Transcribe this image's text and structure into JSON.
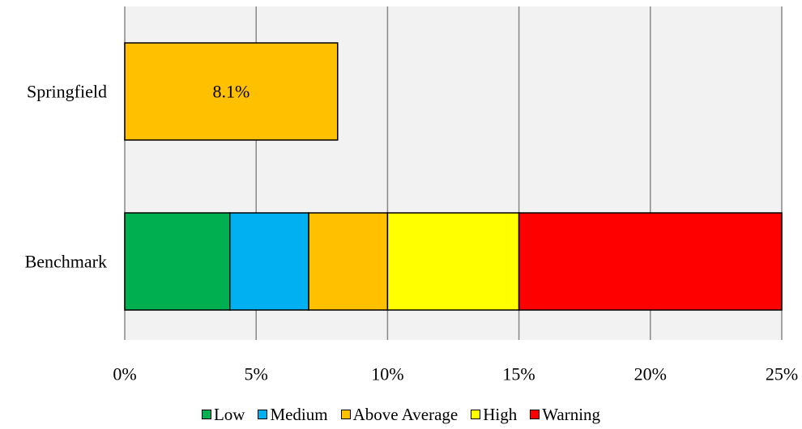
{
  "chart_data": {
    "type": "bar",
    "orientation": "horizontal",
    "stacked": true,
    "categories": [
      "Springfield",
      "Benchmark"
    ],
    "series": [
      {
        "name": "Low",
        "color": "#00b050",
        "values": [
          0,
          4
        ]
      },
      {
        "name": "Medium",
        "color": "#00b0f0",
        "values": [
          0,
          3
        ]
      },
      {
        "name": "Above Average",
        "color": "#ffc000",
        "values": [
          8.1,
          3
        ]
      },
      {
        "name": "High",
        "color": "#ffff00",
        "values": [
          0,
          5
        ]
      },
      {
        "name": "Warning",
        "color": "#ff0000",
        "values": [
          0,
          10
        ]
      }
    ],
    "data_labels": [
      {
        "category": "Springfield",
        "series": "Above Average",
        "text": "8.1%"
      }
    ],
    "xlim": [
      0,
      25
    ],
    "xticks": [
      0,
      5,
      10,
      15,
      20,
      25
    ],
    "xtick_labels": [
      "0%",
      "5%",
      "10%",
      "15%",
      "20%",
      "25%"
    ],
    "grid": "vertical",
    "plot_background": "#f2f2f2",
    "legend_position": "bottom",
    "title": "",
    "xlabel": "",
    "ylabel": ""
  }
}
